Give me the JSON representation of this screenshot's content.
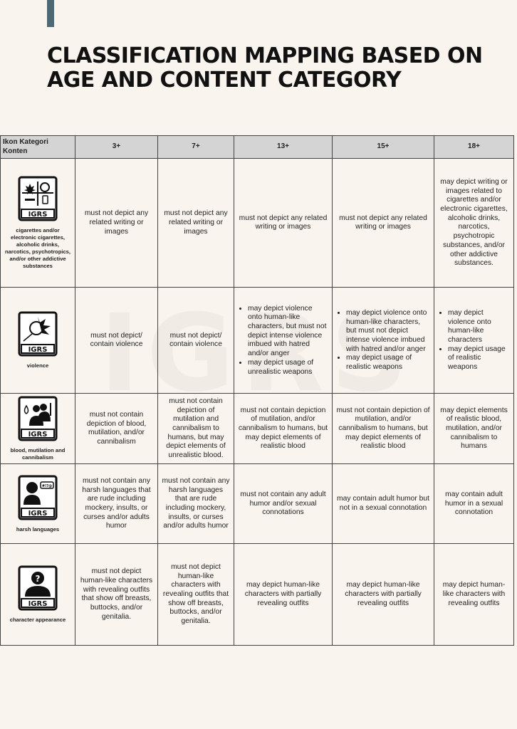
{
  "title": "CLASSIFICATION MAPPING BASED ON AGE AND CONTENT CATEGORY",
  "watermark": "IGRS",
  "accent_color": "#4d6a74",
  "table": {
    "headers": [
      "Ikon Kategori Konten",
      "3+",
      "7+",
      "13+",
      "15+",
      "18+"
    ],
    "rows": [
      {
        "icon": "substances-icon",
        "badge": "IGRS",
        "category": "cigarettes and/or electronic cigarettes, alcoholic drinks, narcotics, psychotropics, and/or other addictive substances",
        "cells": [
          "must not depict any related writing or images",
          "must not depict any related writing or images",
          "must not depict any related writing or images",
          "must not depict any related writing or images",
          "may depict writing or images related to cigarettes and/or electronic cigarettes, alcoholic drinks, narcotics, psychotropic substances, and/or other addictive substances."
        ]
      },
      {
        "icon": "violence-fist-icon",
        "badge": "IGRS",
        "category": "violence",
        "cells": [
          "must not depict/ contain violence",
          "must not depict/ contain violence",
          [
            "may depict violence onto human-like characters, but must not depict intense violence imbued with hatred and/or anger",
            "may depict usage of unrealistic weapons"
          ],
          [
            "may depict violence onto human-like characters, but must not depict intense violence imbued with hatred and/or anger",
            "may depict usage of realistic weapons"
          ],
          [
            "may depict violence onto human-like characters",
            "may depict usage of realistic weapons"
          ]
        ]
      },
      {
        "icon": "blood-mutilation-icon",
        "badge": "IGRS",
        "category": "blood, mutilation and cannibalism",
        "cells": [
          "must not contain depiction of blood, mutilation, and/or cannibalism",
          "must not contain depiction of mutilation and cannibalism to humans, but may depict elements of unrealistic blood.",
          "must not contain depiction of mutilation, and/or cannibalism to humans, but may depict elements of realistic blood",
          "must not contain depiction of mutilation, and/or cannibalism to humans, but may depict elements of realistic blood",
          "may depict elements of realistic blood, mutilation, and/or cannibalism to humans"
        ]
      },
      {
        "icon": "harsh-language-icon",
        "badge": "IGRS",
        "category": "harsh languages",
        "cells": [
          "must not contain any harsh languages that are rude including mockery, insults, or curses and/or adults humor",
          "must not contain any harsh languages that are rude including mockery, insults, or curses and/or adults humor",
          "must not contain any adult humor and/or sexual connotations",
          "may contain adult humor but not in a sexual connotation",
          "may contain adult humor in a sexual connotation"
        ]
      },
      {
        "icon": "character-appearance-icon",
        "badge": "IGRS",
        "category": "character appearance",
        "cells": [
          "must not depict human-like characters with revealing outfits that show off breasts, buttocks, and/or genitalia.",
          "must not depict human-like characters with revealing outfits that show off breasts, buttocks, and/or genitalia.",
          "may depict human-like characters with partially revealing outfits",
          "may depict human-like characters with partially revealing outfits",
          "may depict human-like characters with revealing outfits"
        ]
      }
    ]
  }
}
